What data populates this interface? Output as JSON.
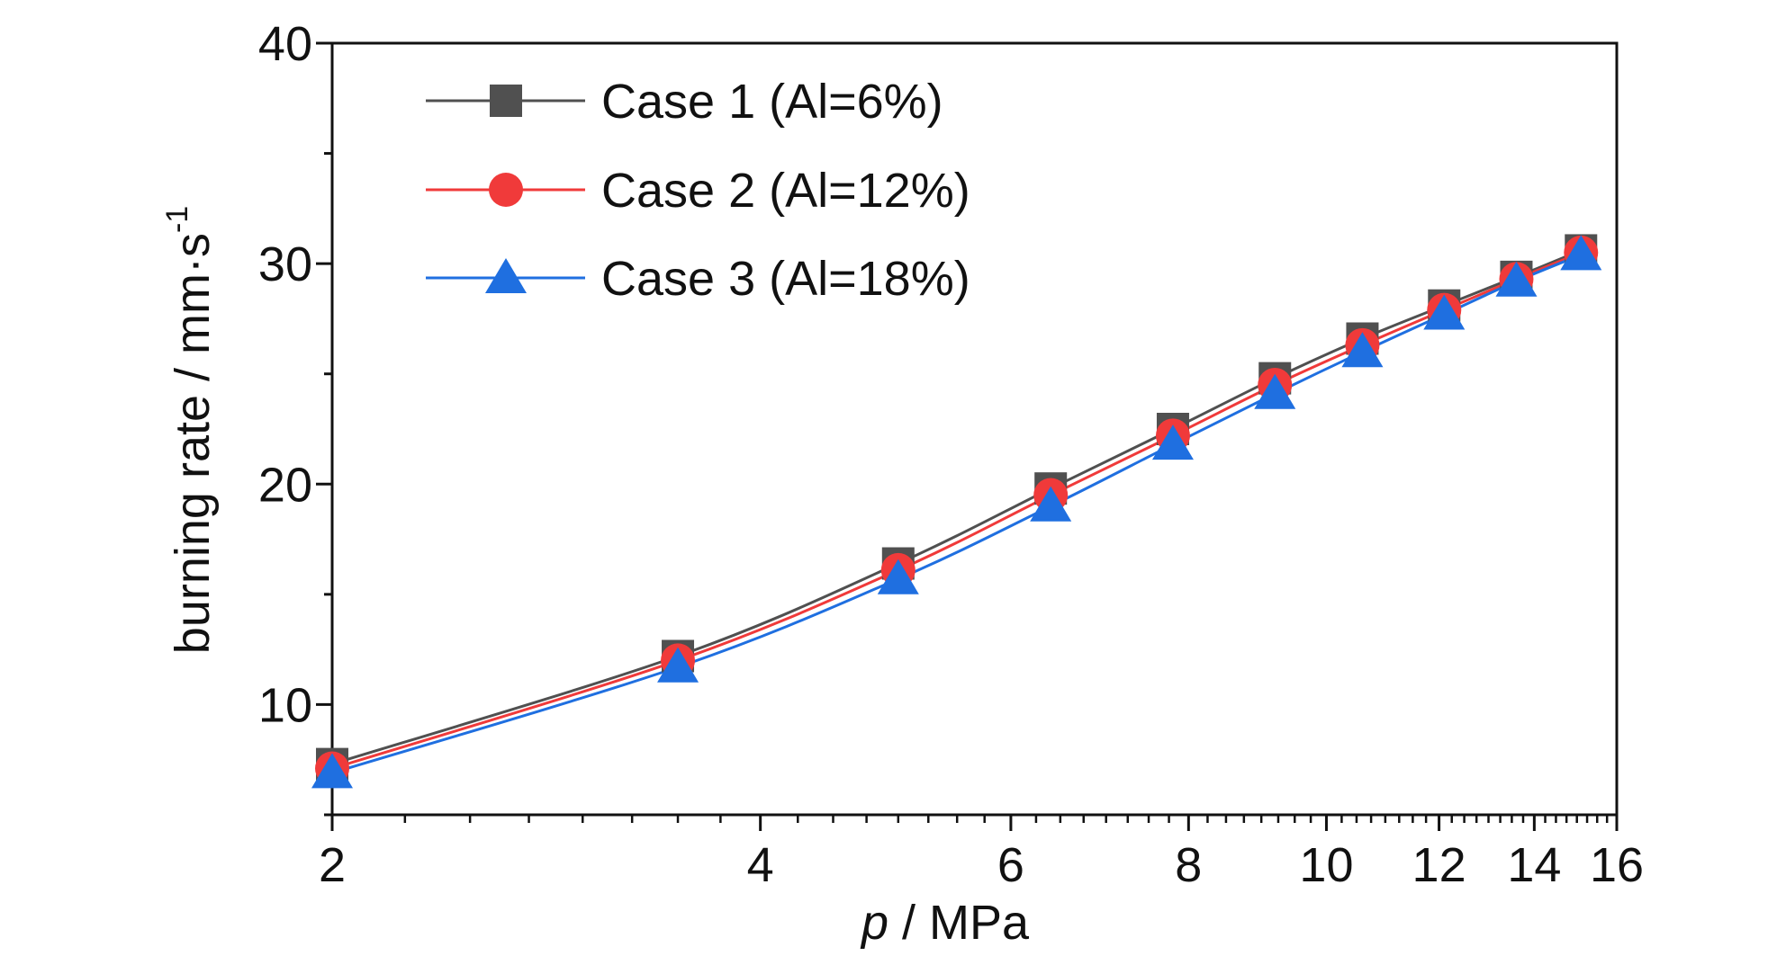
{
  "chart_data": {
    "type": "line",
    "x_scale": "log",
    "xlabel_italic": "p",
    "xlabel_rest": " / MPa",
    "ylabel_main": "burning rate / mm·s",
    "ylabel_sup": "-1",
    "xlim": [
      2,
      16
    ],
    "ylim": [
      5,
      40
    ],
    "x_ticks": [
      2,
      4,
      6,
      8,
      10,
      12,
      14,
      16
    ],
    "x_tick_labels": [
      "2",
      "4",
      "6",
      "8",
      "10",
      "12",
      "14",
      "16"
    ],
    "y_ticks": [
      10,
      20,
      30,
      40
    ],
    "y_tick_labels": [
      "10",
      "20",
      "30",
      "40"
    ],
    "legend_position": "top-left",
    "grid": false,
    "x": [
      2.0,
      3.5,
      5.0,
      6.4,
      7.8,
      9.2,
      10.6,
      12.1,
      13.6,
      15.1
    ],
    "series": [
      {
        "name": "Case 1 (Al=6%)",
        "color": "#505050",
        "marker": "square",
        "values": [
          7.3,
          12.2,
          16.4,
          19.8,
          22.5,
          24.8,
          26.6,
          28.1,
          29.4,
          30.6
        ]
      },
      {
        "name": "Case 2 (Al=12%)",
        "color": "#f03a3a",
        "marker": "circle",
        "values": [
          7.1,
          12.0,
          16.1,
          19.5,
          22.2,
          24.5,
          26.3,
          27.9,
          29.3,
          30.5
        ]
      },
      {
        "name": "Case 3 (Al=18%)",
        "color": "#1f6fe0",
        "marker": "triangle",
        "values": [
          6.9,
          11.7,
          15.7,
          19.0,
          21.8,
          24.1,
          26.0,
          27.7,
          29.2,
          30.4
        ]
      }
    ]
  }
}
